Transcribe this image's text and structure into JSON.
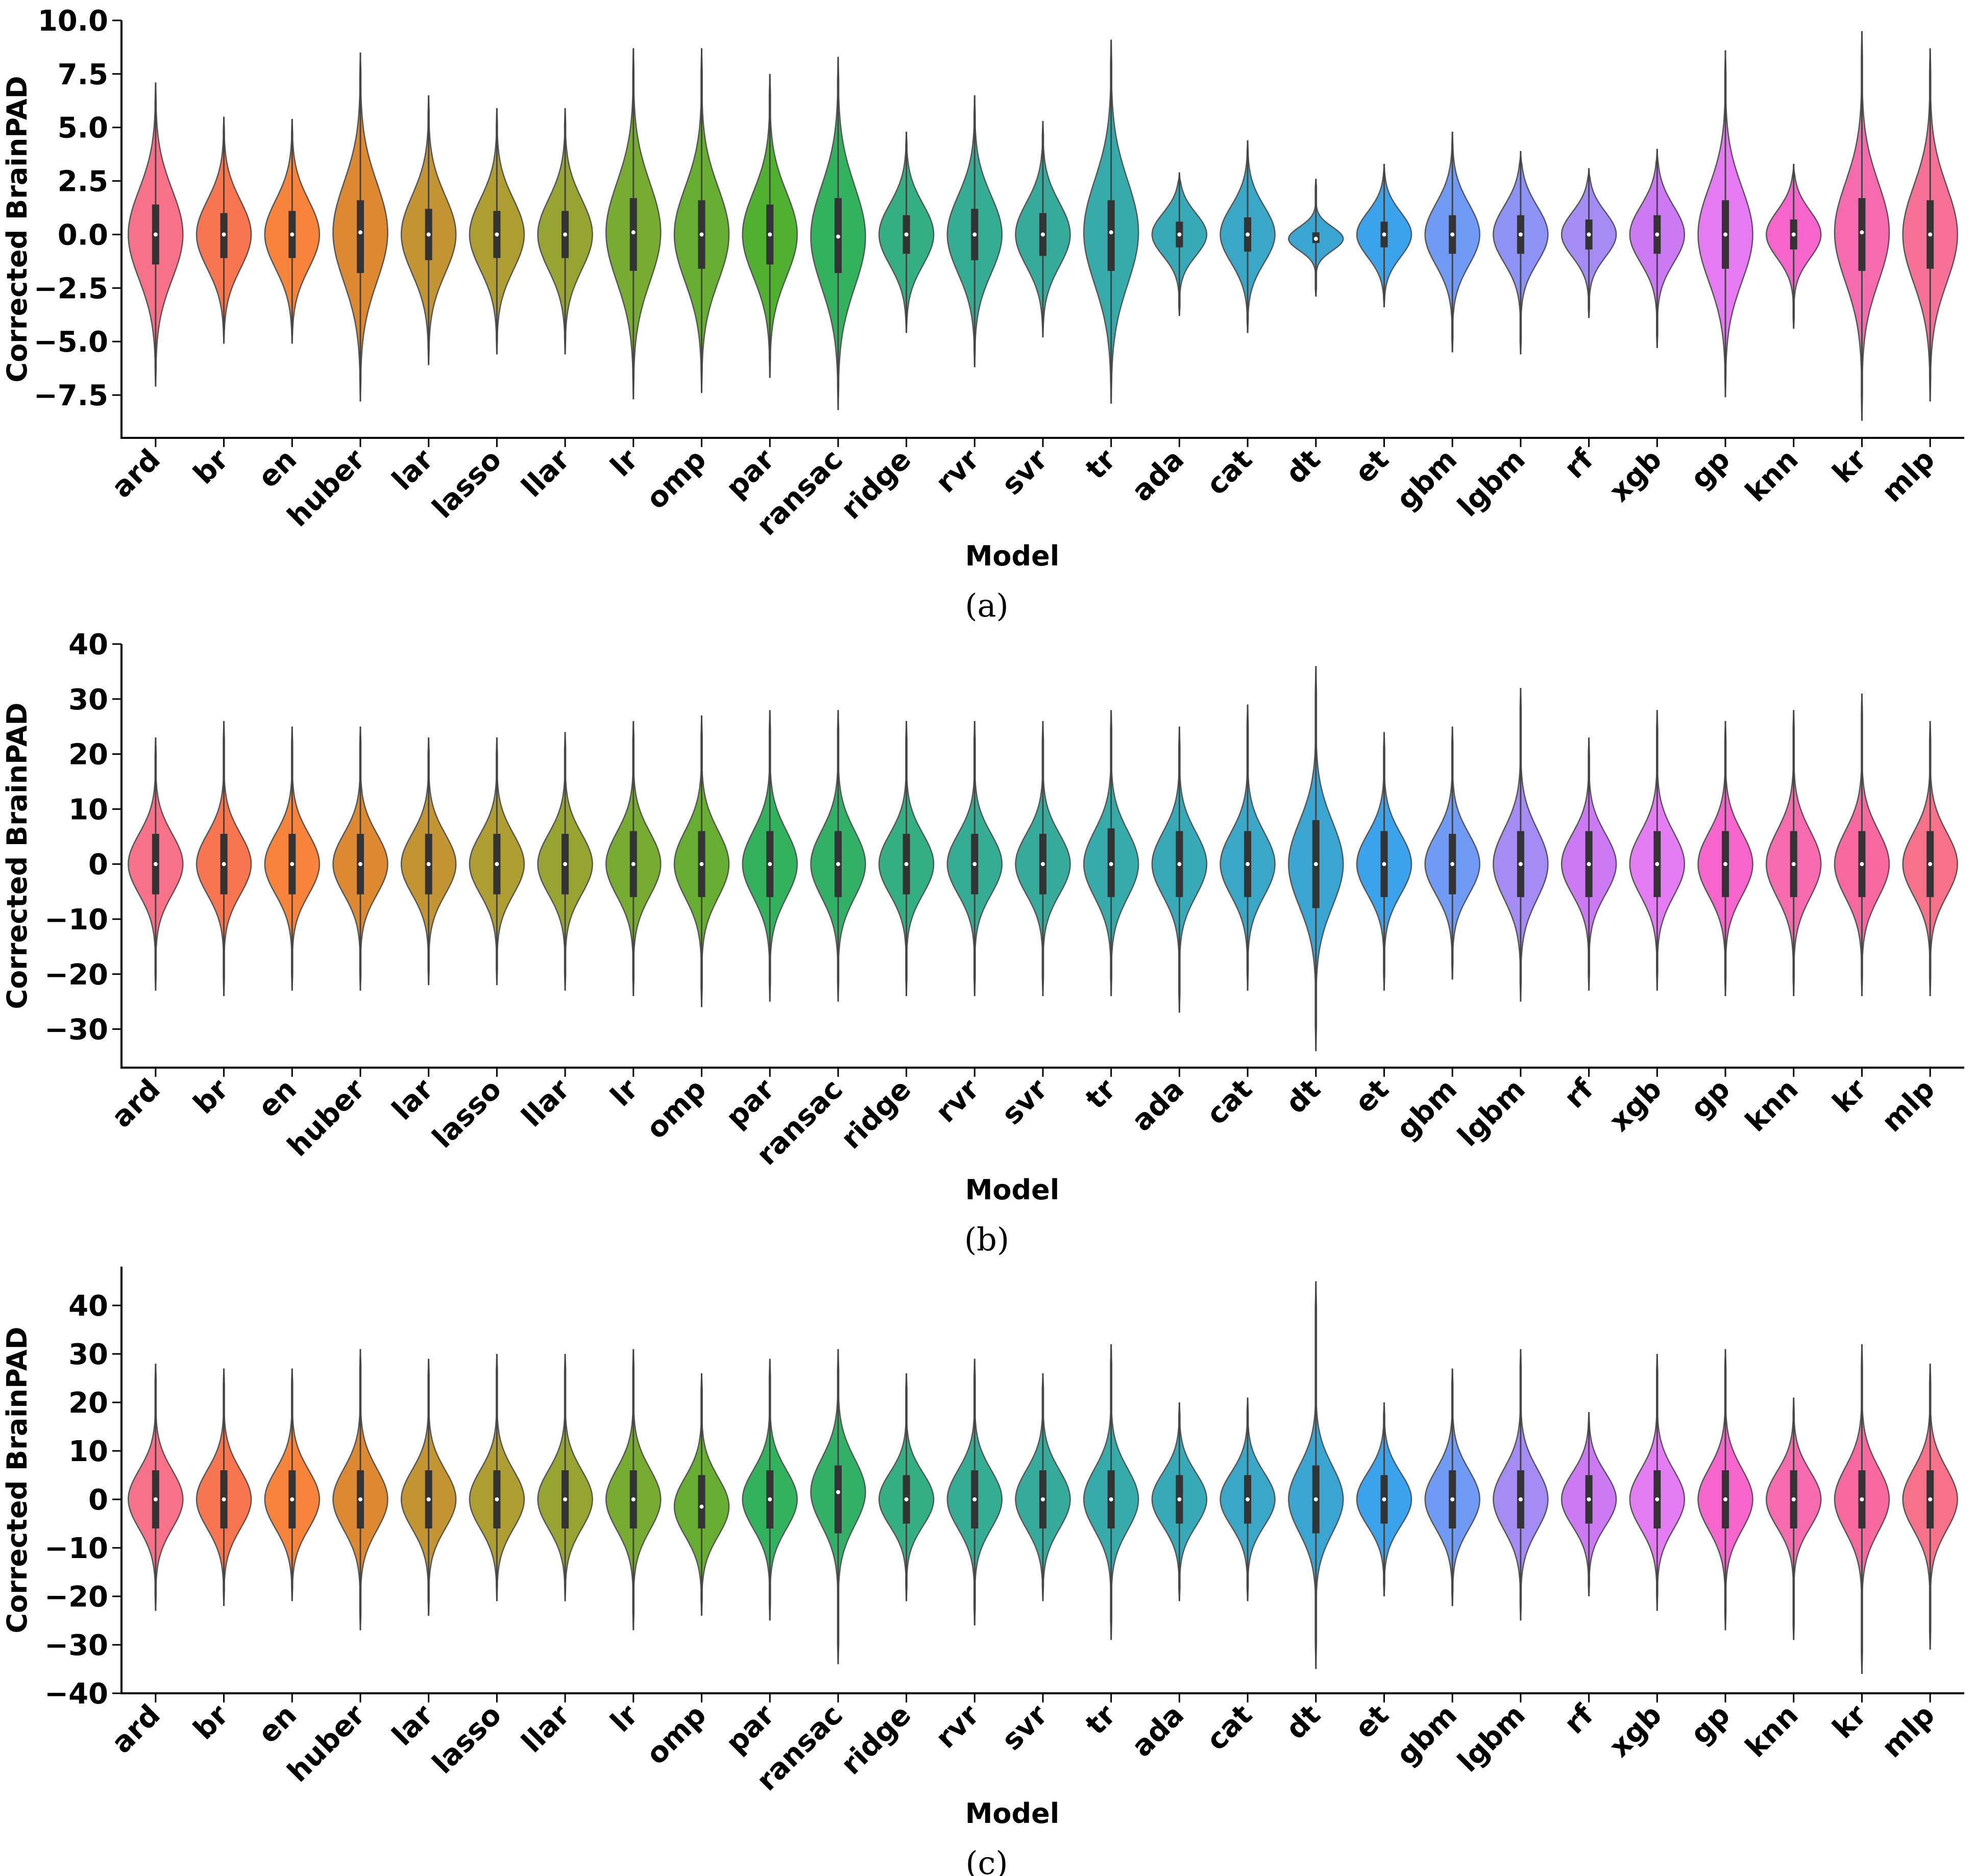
{
  "chart_data": [
    {
      "type": "violin",
      "panel_label": "(a)",
      "xlabel": "Model",
      "ylabel": "Corrected BrainPAD",
      "ylim": [
        -9.5,
        10.0
      ],
      "yticks": [
        "10.0",
        "7.5",
        "5.0",
        "2.5",
        "0.0",
        "−2.5",
        "−5.0",
        "−7.5"
      ],
      "ytick_values": [
        10.0,
        7.5,
        5.0,
        2.5,
        0.0,
        -2.5,
        -5.0,
        -7.5
      ],
      "categories": [
        "ard",
        "br",
        "en",
        "huber",
        "lar",
        "lasso",
        "llar",
        "lr",
        "omp",
        "par",
        "ransac",
        "ridge",
        "rvr",
        "svr",
        "tr",
        "ada",
        "cat",
        "dt",
        "et",
        "gbm",
        "lgbm",
        "rf",
        "xgb",
        "gp",
        "knn",
        "kr",
        "mlp"
      ],
      "series": [
        {
          "name": "ard",
          "min": -7.1,
          "max": 7.1,
          "q1": -1.4,
          "median": 0.0,
          "q3": 1.4,
          "spread": 3.8
        },
        {
          "name": "br",
          "min": -5.1,
          "max": 5.5,
          "q1": -1.1,
          "median": 0.0,
          "q3": 1.0,
          "spread": 2.9
        },
        {
          "name": "en",
          "min": -5.1,
          "max": 5.4,
          "q1": -1.1,
          "median": 0.0,
          "q3": 1.1,
          "spread": 2.9
        },
        {
          "name": "huber",
          "min": -7.8,
          "max": 8.5,
          "q1": -1.8,
          "median": 0.1,
          "q3": 1.6,
          "spread": 4.2
        },
        {
          "name": "lar",
          "min": -6.1,
          "max": 6.5,
          "q1": -1.2,
          "median": 0.0,
          "q3": 1.2,
          "spread": 3.3
        },
        {
          "name": "lasso",
          "min": -5.6,
          "max": 5.9,
          "q1": -1.1,
          "median": 0.0,
          "q3": 1.1,
          "spread": 3.0
        },
        {
          "name": "llar",
          "min": -5.6,
          "max": 5.9,
          "q1": -1.1,
          "median": 0.0,
          "q3": 1.1,
          "spread": 3.0
        },
        {
          "name": "lr",
          "min": -7.7,
          "max": 8.7,
          "q1": -1.7,
          "median": 0.1,
          "q3": 1.7,
          "spread": 4.2
        },
        {
          "name": "omp",
          "min": -7.4,
          "max": 8.7,
          "q1": -1.6,
          "median": 0.0,
          "q3": 1.6,
          "spread": 4.0
        },
        {
          "name": "par",
          "min": -6.7,
          "max": 7.5,
          "q1": -1.4,
          "median": 0.0,
          "q3": 1.4,
          "spread": 3.6
        },
        {
          "name": "ransac",
          "min": -8.2,
          "max": 8.3,
          "q1": -1.8,
          "median": -0.1,
          "q3": 1.7,
          "spread": 4.3
        },
        {
          "name": "ridge",
          "min": -4.6,
          "max": 4.8,
          "q1": -0.9,
          "median": 0.0,
          "q3": 0.9,
          "spread": 2.6
        },
        {
          "name": "rvr",
          "min": -6.2,
          "max": 6.5,
          "q1": -1.2,
          "median": 0.0,
          "q3": 1.2,
          "spread": 3.3
        },
        {
          "name": "svr",
          "min": -4.8,
          "max": 5.3,
          "q1": -1.0,
          "median": 0.0,
          "q3": 1.0,
          "spread": 2.7
        },
        {
          "name": "tr",
          "min": -7.9,
          "max": 9.1,
          "q1": -1.7,
          "median": 0.1,
          "q3": 1.6,
          "spread": 4.4
        },
        {
          "name": "ada",
          "min": -3.8,
          "max": 2.9,
          "q1": -0.6,
          "median": 0.0,
          "q3": 0.6,
          "spread": 1.8
        },
        {
          "name": "cat",
          "min": -4.6,
          "max": 4.4,
          "q1": -0.8,
          "median": 0.0,
          "q3": 0.8,
          "spread": 2.4
        },
        {
          "name": "dt",
          "min": -2.9,
          "max": 2.6,
          "q1": -0.4,
          "median": -0.2,
          "q3": 0.1,
          "spread": 1.0
        },
        {
          "name": "et",
          "min": -3.4,
          "max": 3.3,
          "q1": -0.6,
          "median": 0.0,
          "q3": 0.6,
          "spread": 1.9
        },
        {
          "name": "gbm",
          "min": -5.5,
          "max": 4.8,
          "q1": -0.9,
          "median": 0.0,
          "q3": 0.9,
          "spread": 2.6
        },
        {
          "name": "lgbm",
          "min": -5.6,
          "max": 3.9,
          "q1": -0.9,
          "median": 0.0,
          "q3": 0.9,
          "spread": 2.4
        },
        {
          "name": "rf",
          "min": -3.9,
          "max": 3.1,
          "q1": -0.7,
          "median": 0.0,
          "q3": 0.7,
          "spread": 1.9
        },
        {
          "name": "xgb",
          "min": -5.3,
          "max": 4.0,
          "q1": -0.9,
          "median": 0.0,
          "q3": 0.9,
          "spread": 2.4
        },
        {
          "name": "gp",
          "min": -7.6,
          "max": 8.6,
          "q1": -1.6,
          "median": 0.0,
          "q3": 1.6,
          "spread": 4.0
        },
        {
          "name": "knn",
          "min": -4.4,
          "max": 3.3,
          "q1": -0.7,
          "median": 0.0,
          "q3": 0.7,
          "spread": 2.0
        },
        {
          "name": "kr",
          "min": -8.7,
          "max": 9.5,
          "q1": -1.7,
          "median": 0.1,
          "q3": 1.7,
          "spread": 4.2
        },
        {
          "name": "mlp",
          "min": -7.8,
          "max": 8.7,
          "q1": -1.6,
          "median": 0.0,
          "q3": 1.6,
          "spread": 4.1
        }
      ]
    },
    {
      "type": "violin",
      "panel_label": "(b)",
      "xlabel": "Model",
      "ylabel": "Corrected BrainPAD",
      "ylim": [
        -37,
        40
      ],
      "yticks": [
        "40",
        "30",
        "20",
        "10",
        "0",
        "−10",
        "−20",
        "−30"
      ],
      "ytick_values": [
        40,
        30,
        20,
        10,
        0,
        -10,
        -20,
        -30
      ],
      "categories": [
        "ard",
        "br",
        "en",
        "huber",
        "lar",
        "lasso",
        "llar",
        "lr",
        "omp",
        "par",
        "ransac",
        "ridge",
        "rvr",
        "svr",
        "tr",
        "ada",
        "cat",
        "dt",
        "et",
        "gbm",
        "lgbm",
        "rf",
        "xgb",
        "gp",
        "knn",
        "kr",
        "mlp"
      ],
      "series": [
        {
          "name": "ard",
          "min": -23,
          "max": 23,
          "q1": -5.5,
          "median": 0.0,
          "q3": 5.5,
          "spread": 10
        },
        {
          "name": "br",
          "min": -24,
          "max": 26,
          "q1": -5.5,
          "median": 0.0,
          "q3": 5.5,
          "spread": 10
        },
        {
          "name": "en",
          "min": -23,
          "max": 25,
          "q1": -5.5,
          "median": 0.0,
          "q3": 5.5,
          "spread": 10
        },
        {
          "name": "huber",
          "min": -23,
          "max": 25,
          "q1": -5.5,
          "median": 0.0,
          "q3": 5.5,
          "spread": 10
        },
        {
          "name": "lar",
          "min": -22,
          "max": 23,
          "q1": -5.5,
          "median": 0.0,
          "q3": 5.5,
          "spread": 10
        },
        {
          "name": "lasso",
          "min": -22,
          "max": 23,
          "q1": -5.5,
          "median": 0.0,
          "q3": 5.5,
          "spread": 10
        },
        {
          "name": "llar",
          "min": -23,
          "max": 24,
          "q1": -5.5,
          "median": 0.0,
          "q3": 5.5,
          "spread": 10
        },
        {
          "name": "lr",
          "min": -24,
          "max": 26,
          "q1": -6,
          "median": 0.0,
          "q3": 6,
          "spread": 10.5
        },
        {
          "name": "omp",
          "min": -26,
          "max": 27,
          "q1": -6,
          "median": 0.0,
          "q3": 6,
          "spread": 11
        },
        {
          "name": "par",
          "min": -25,
          "max": 28,
          "q1": -6,
          "median": 0.0,
          "q3": 6,
          "spread": 11
        },
        {
          "name": "ransac",
          "min": -25,
          "max": 28,
          "q1": -6,
          "median": 0.0,
          "q3": 6,
          "spread": 11
        },
        {
          "name": "ridge",
          "min": -24,
          "max": 26,
          "q1": -5.5,
          "median": 0.0,
          "q3": 5.5,
          "spread": 10
        },
        {
          "name": "rvr",
          "min": -24,
          "max": 26,
          "q1": -5.5,
          "median": 0.0,
          "q3": 5.5,
          "spread": 10
        },
        {
          "name": "svr",
          "min": -24,
          "max": 26,
          "q1": -5.5,
          "median": 0.0,
          "q3": 5.5,
          "spread": 10
        },
        {
          "name": "tr",
          "min": -24,
          "max": 28,
          "q1": -6,
          "median": 0.0,
          "q3": 6.5,
          "spread": 11
        },
        {
          "name": "ada",
          "min": -27,
          "max": 25,
          "q1": -6,
          "median": 0.0,
          "q3": 6,
          "spread": 10.5
        },
        {
          "name": "cat",
          "min": -23,
          "max": 29,
          "q1": -6,
          "median": 0.0,
          "q3": 6,
          "spread": 10.5
        },
        {
          "name": "dt",
          "min": -34,
          "max": 36,
          "q1": -8,
          "median": 0.0,
          "q3": 8,
          "spread": 14
        },
        {
          "name": "et",
          "min": -23,
          "max": 24,
          "q1": -6,
          "median": 0.0,
          "q3": 6,
          "spread": 10
        },
        {
          "name": "gbm",
          "min": -21,
          "max": 25,
          "q1": -5.5,
          "median": 0.0,
          "q3": 5.5,
          "spread": 10
        },
        {
          "name": "lgbm",
          "min": -25,
          "max": 32,
          "q1": -6,
          "median": 0.0,
          "q3": 6,
          "spread": 11.5
        },
        {
          "name": "rf",
          "min": -23,
          "max": 23,
          "q1": -6,
          "median": 0.0,
          "q3": 6,
          "spread": 10
        },
        {
          "name": "xgb",
          "min": -23,
          "max": 28,
          "q1": -6,
          "median": 0.0,
          "q3": 6,
          "spread": 10.5
        },
        {
          "name": "gp",
          "min": -24,
          "max": 26,
          "q1": -6,
          "median": 0.0,
          "q3": 6,
          "spread": 10.5
        },
        {
          "name": "knn",
          "min": -24,
          "max": 28,
          "q1": -6,
          "median": 0.0,
          "q3": 6,
          "spread": 11
        },
        {
          "name": "kr",
          "min": -24,
          "max": 31,
          "q1": -6,
          "median": 0.0,
          "q3": 6,
          "spread": 11
        },
        {
          "name": "mlp",
          "min": -24,
          "max": 26,
          "q1": -6,
          "median": 0.0,
          "q3": 6,
          "spread": 10.5
        }
      ]
    },
    {
      "type": "violin",
      "panel_label": "(c)",
      "xlabel": "Model",
      "ylabel": "Corrected BrainPAD",
      "ylim": [
        -40,
        48
      ],
      "yticks": [
        "40",
        "30",
        "20",
        "10",
        "0",
        "−10",
        "−20",
        "−30",
        "−40"
      ],
      "ytick_values": [
        40,
        30,
        20,
        10,
        0,
        -10,
        -20,
        -30,
        -40
      ],
      "categories": [
        "ard",
        "br",
        "en",
        "huber",
        "lar",
        "lasso",
        "llar",
        "lr",
        "omp",
        "par",
        "ransac",
        "ridge",
        "rvr",
        "svr",
        "tr",
        "ada",
        "cat",
        "dt",
        "et",
        "gbm",
        "lgbm",
        "rf",
        "xgb",
        "gp",
        "knn",
        "kr",
        "mlp"
      ],
      "series": [
        {
          "name": "ard",
          "min": -23,
          "max": 28,
          "q1": -6,
          "median": 0.0,
          "q3": 6,
          "spread": 11
        },
        {
          "name": "br",
          "min": -22,
          "max": 27,
          "q1": -6,
          "median": 0.0,
          "q3": 6,
          "spread": 11
        },
        {
          "name": "en",
          "min": -21,
          "max": 27,
          "q1": -6,
          "median": 0.0,
          "q3": 6,
          "spread": 11
        },
        {
          "name": "huber",
          "min": -27,
          "max": 31,
          "q1": -6,
          "median": 0.0,
          "q3": 6,
          "spread": 11.5
        },
        {
          "name": "lar",
          "min": -24,
          "max": 29,
          "q1": -6,
          "median": 0.0,
          "q3": 6,
          "spread": 11
        },
        {
          "name": "lasso",
          "min": -21,
          "max": 30,
          "q1": -6,
          "median": 0.0,
          "q3": 6,
          "spread": 11
        },
        {
          "name": "llar",
          "min": -21,
          "max": 30,
          "q1": -6,
          "median": 0.0,
          "q3": 6,
          "spread": 11
        },
        {
          "name": "lr",
          "min": -27,
          "max": 31,
          "q1": -6,
          "median": 0.0,
          "q3": 6,
          "spread": 11.5
        },
        {
          "name": "omp",
          "min": -24,
          "max": 26,
          "q1": -6,
          "median": -1.5,
          "q3": 5,
          "spread": 11
        },
        {
          "name": "par",
          "min": -25,
          "max": 29,
          "q1": -6,
          "median": 0.0,
          "q3": 6,
          "spread": 11
        },
        {
          "name": "ransac",
          "min": -34,
          "max": 31,
          "q1": -7,
          "median": 1.5,
          "q3": 7,
          "spread": 12.5
        },
        {
          "name": "ridge",
          "min": -21,
          "max": 26,
          "q1": -5,
          "median": 0.0,
          "q3": 5,
          "spread": 10
        },
        {
          "name": "rvr",
          "min": -26,
          "max": 29,
          "q1": -6,
          "median": 0.0,
          "q3": 6,
          "spread": 11
        },
        {
          "name": "svr",
          "min": -21,
          "max": 26,
          "q1": -6,
          "median": 0.0,
          "q3": 6,
          "spread": 11
        },
        {
          "name": "tr",
          "min": -29,
          "max": 32,
          "q1": -6,
          "median": 0.0,
          "q3": 6,
          "spread": 11.5
        },
        {
          "name": "ada",
          "min": -21,
          "max": 20,
          "q1": -5,
          "median": 0.0,
          "q3": 5,
          "spread": 10
        },
        {
          "name": "cat",
          "min": -21,
          "max": 21,
          "q1": -5,
          "median": 0.0,
          "q3": 5,
          "spread": 10
        },
        {
          "name": "dt",
          "min": -35,
          "max": 45,
          "q1": -7,
          "median": 0.0,
          "q3": 7,
          "spread": 12.5
        },
        {
          "name": "et",
          "min": -20,
          "max": 20,
          "q1": -5,
          "median": 0.0,
          "q3": 5,
          "spread": 10
        },
        {
          "name": "gbm",
          "min": -22,
          "max": 27,
          "q1": -6,
          "median": 0.0,
          "q3": 6,
          "spread": 11
        },
        {
          "name": "lgbm",
          "min": -25,
          "max": 31,
          "q1": -6,
          "median": 0.0,
          "q3": 6,
          "spread": 11.5
        },
        {
          "name": "rf",
          "min": -20,
          "max": 18,
          "q1": -5,
          "median": 0.0,
          "q3": 5,
          "spread": 10
        },
        {
          "name": "xgb",
          "min": -23,
          "max": 30,
          "q1": -6,
          "median": 0.0,
          "q3": 6,
          "spread": 11
        },
        {
          "name": "gp",
          "min": -27,
          "max": 31,
          "q1": -6,
          "median": 0.0,
          "q3": 6,
          "spread": 11.5
        },
        {
          "name": "knn",
          "min": -29,
          "max": 21,
          "q1": -6,
          "median": 0.0,
          "q3": 6,
          "spread": 10.5
        },
        {
          "name": "kr",
          "min": -36,
          "max": 32,
          "q1": -6,
          "median": 0.0,
          "q3": 6,
          "spread": 12
        },
        {
          "name": "mlp",
          "min": -31,
          "max": 28,
          "q1": -6,
          "median": 0.0,
          "q3": 6,
          "spread": 11.5
        }
      ]
    }
  ],
  "colors": [
    "#f77189",
    "#f7754f",
    "#f7843a",
    "#dc8932",
    "#c39532",
    "#ae9d31",
    "#97a431",
    "#77ab31",
    "#50b131",
    "#33b25e",
    "#34af83",
    "#35ad9b",
    "#36abaa",
    "#37abb6",
    "#38a9c5",
    "#39a7d0",
    "#3ba3ec",
    "#6f9bf4",
    "#a48cf4",
    "#cc7af4",
    "#e47df3",
    "#f067e9",
    "#f565cc",
    "#f66bad",
    "#f5689e",
    "#f76997",
    "#f77189"
  ],
  "panel_colors": [
    [
      "#f77189",
      "#f7754f",
      "#f7843a",
      "#dc8932",
      "#c39532",
      "#ae9d31",
      "#97a431",
      "#77ab31",
      "#67ad31",
      "#50b131",
      "#33b25e",
      "#34af83",
      "#35ad93",
      "#36ab9b",
      "#37abaa",
      "#38a9b6",
      "#39a7c5",
      "#3aa5d0",
      "#3ba3ec",
      "#6f9bf4",
      "#8d93f4",
      "#a48cf4",
      "#cc7af4",
      "#e67af3",
      "#f565cc",
      "#f66bad",
      "#f77197"
    ],
    [
      "#f77189",
      "#f7754f",
      "#f7843a",
      "#dc8932",
      "#c39532",
      "#ae9d31",
      "#97a431",
      "#77ab31",
      "#67ad31",
      "#33b25e",
      "#32b166",
      "#34af83",
      "#35ad93",
      "#36ab9b",
      "#37abaa",
      "#38a9b6",
      "#39a7c5",
      "#3aa5d0",
      "#3ba3ec",
      "#6f9bf4",
      "#a48cf4",
      "#cc7af4",
      "#e47df3",
      "#f565cc",
      "#f66bad",
      "#f6689e",
      "#f77189"
    ],
    [
      "#f77189",
      "#f7754f",
      "#f7843a",
      "#dc8932",
      "#c39532",
      "#ae9d31",
      "#97a431",
      "#77ab31",
      "#67ad31",
      "#33b25e",
      "#32b166",
      "#34af83",
      "#35ad93",
      "#36ab9b",
      "#37abaa",
      "#38a9b6",
      "#39a7c5",
      "#3aa5d0",
      "#3ba3ec",
      "#6f9bf4",
      "#a48cf4",
      "#cc7af4",
      "#e47df3",
      "#f565cc",
      "#f66bad",
      "#f6689e",
      "#f77189"
    ]
  ]
}
